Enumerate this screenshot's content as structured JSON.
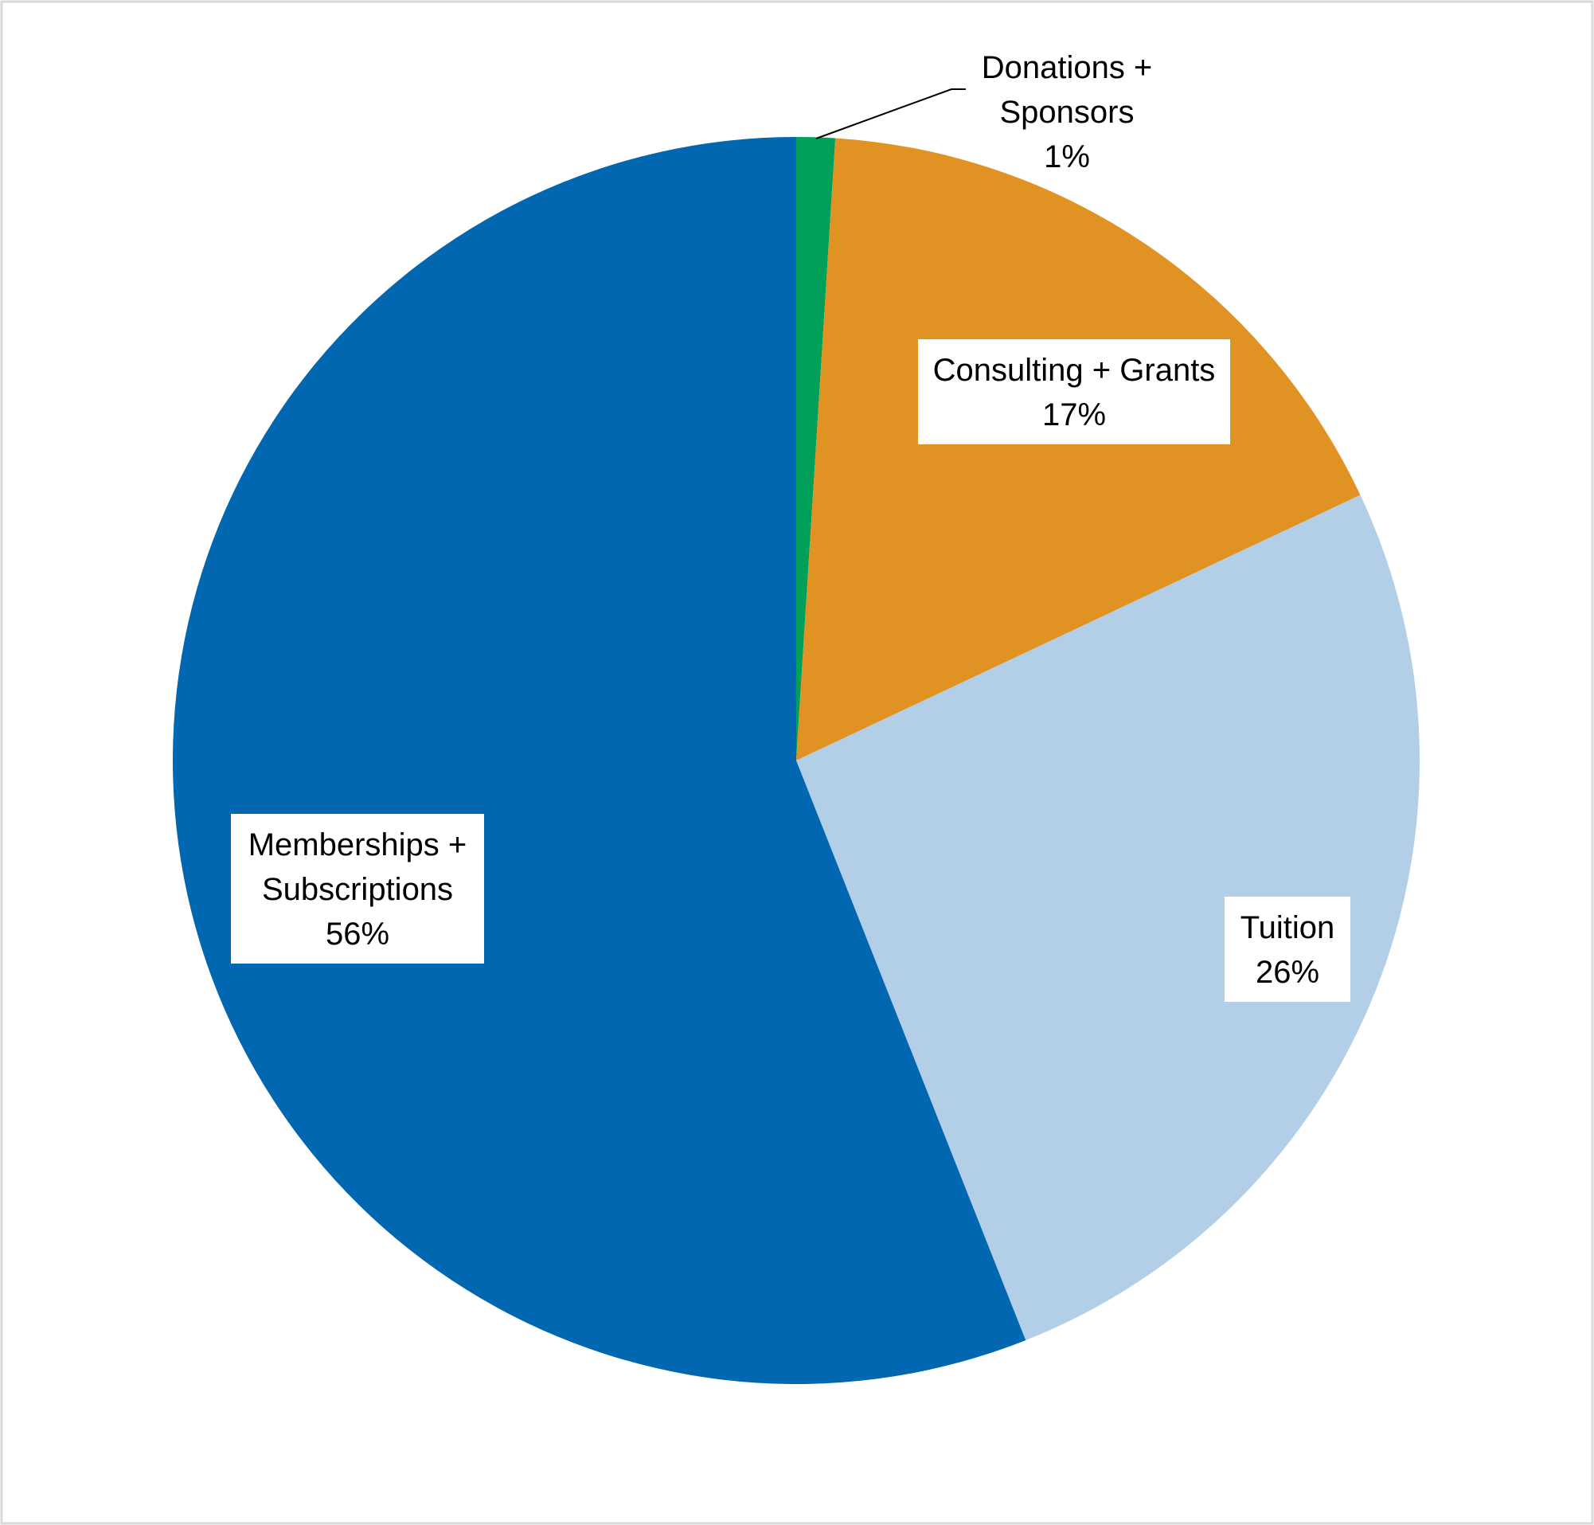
{
  "chart_data": {
    "type": "pie",
    "title": "",
    "start_angle_deg": 0,
    "direction": "clockwise",
    "legend": "none",
    "slices": [
      {
        "name": "Donations + Sponsors",
        "label_lines": [
          "Donations +",
          "Sponsors"
        ],
        "value": 1,
        "value_label": "1%",
        "color": "#00A05A",
        "label_placement": "outside",
        "label_boxed": false
      },
      {
        "name": "Consulting + Grants",
        "label_lines": [
          "Consulting + Grants"
        ],
        "value": 17,
        "value_label": "17%",
        "color": "#E09322",
        "label_placement": "inside",
        "label_boxed": true
      },
      {
        "name": "Tuition",
        "label_lines": [
          "Tuition"
        ],
        "value": 26,
        "value_label": "26%",
        "color": "#B3CEE7",
        "label_placement": "inside",
        "label_boxed": true
      },
      {
        "name": "Memberships + Subscriptions",
        "label_lines": [
          "Memberships +",
          "Subscriptions"
        ],
        "value": 56,
        "value_label": "56%",
        "color": "#0067B0",
        "label_placement": "inside",
        "label_boxed": true
      }
    ],
    "border_color": "#D9D9D9",
    "label_box_fill": "#FFFFFF",
    "leader_line_color": "#000000"
  }
}
